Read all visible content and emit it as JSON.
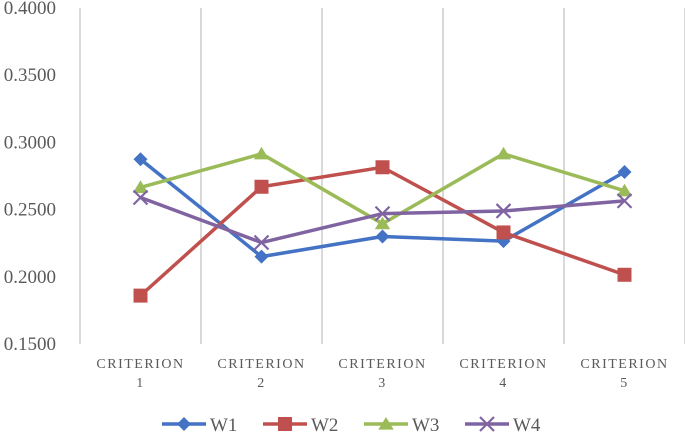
{
  "chart_data": {
    "type": "line",
    "categories": [
      [
        "CRITERION",
        "1"
      ],
      [
        "CRITERION",
        "2"
      ],
      [
        "CRITERION",
        "3"
      ],
      [
        "CRITERION",
        "4"
      ],
      [
        "CRITERION",
        "5"
      ]
    ],
    "ylim": [
      0.15,
      0.4
    ],
    "yticks": [
      "0.1500",
      "0.2000",
      "0.2500",
      "0.3000",
      "0.3500",
      "0.4000"
    ],
    "grid": "vertical",
    "legend_position": "bottom",
    "series": [
      {
        "name": "W1",
        "color": "#4472C4",
        "marker": "diamond",
        "values": [
          0.2875,
          0.215,
          0.23,
          0.2265,
          0.278
        ]
      },
      {
        "name": "W2",
        "color": "#C0504D",
        "marker": "square",
        "values": [
          0.186,
          0.267,
          0.2815,
          0.233,
          0.2015
        ]
      },
      {
        "name": "W3",
        "color": "#9BBB59",
        "marker": "triangle",
        "values": [
          0.2665,
          0.2915,
          0.2395,
          0.2915,
          0.264
        ]
      },
      {
        "name": "W4",
        "color": "#8064A2",
        "marker": "x",
        "values": [
          0.259,
          0.2255,
          0.247,
          0.249,
          0.2565
        ]
      }
    ]
  }
}
